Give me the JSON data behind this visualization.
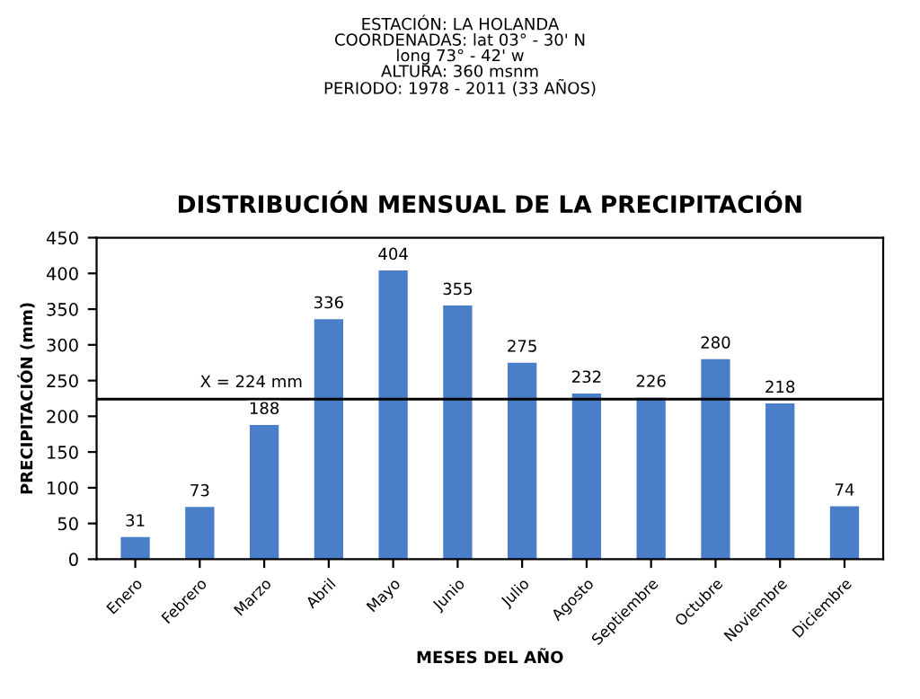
{
  "chart_data": {
    "type": "bar",
    "subtitle": "ESTACIÓN: LA HOLANDA\nCOORDENADAS: lat 03° - 30' N\nlong 73° - 42' w\nALTURA: 360 msnm\nPERIODO: 1978 - 2011 (33 AÑOS)",
    "title": "DISTRIBUCIÓN MENSUAL DE LA PRECIPITACIÓN",
    "xlabel": "MESES DEL AÑO",
    "ylabel": "PRECIPITACIÓN (mm)",
    "categories": [
      "Enero",
      "Febrero",
      "Marzo",
      "Abril",
      "Mayo",
      "Junio",
      "Julio",
      "Agosto",
      "Septiembre",
      "Octubre",
      "Noviembre",
      "Diciembre"
    ],
    "values": [
      31,
      73,
      188,
      336,
      404,
      355,
      275,
      232,
      226,
      280,
      218,
      74
    ],
    "color": "#4a7ec8",
    "ylim": [
      0,
      450
    ],
    "yticks": [
      0,
      50,
      100,
      150,
      200,
      250,
      300,
      350,
      400,
      450
    ],
    "data_labels": true,
    "grid": false,
    "legend": false,
    "ref_lines": [
      {
        "axis": "y",
        "value": 224,
        "label": "X = 224 mm",
        "color": "#000000"
      }
    ]
  }
}
